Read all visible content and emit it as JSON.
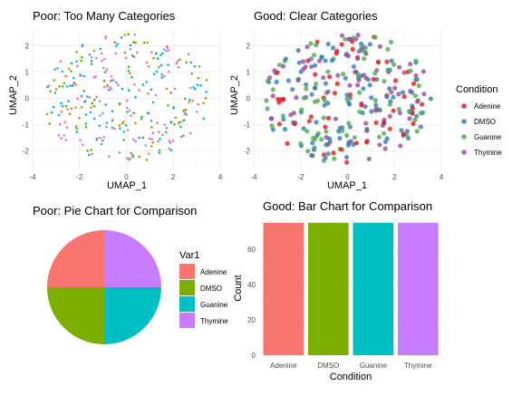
{
  "panels": {
    "tl_title": "Poor: Too Many Categories",
    "tr_title": "Good: Clear Categories",
    "bl_title": "Poor: Pie Chart for Comparison",
    "br_title": "Good: Bar Chart for Comparison"
  },
  "chart_data": [
    {
      "type": "scatter",
      "title": "Poor: Too Many Categories",
      "xlabel": "UMAP_1",
      "ylabel": "UMAP_2",
      "xlim": [
        -4,
        4
      ],
      "ylim": [
        -2.7,
        2.6
      ],
      "xticks": [
        "-4",
        "-2",
        "0",
        "2",
        "4"
      ],
      "yticks": [
        "-2",
        "-1",
        "0",
        "1",
        "2"
      ],
      "colors": [
        "#F8766D",
        "#C49A00",
        "#53B400",
        "#00C094",
        "#00B6EB",
        "#A58AFF",
        "#FB61D7",
        "#E76BF3",
        "#00BFC4",
        "#7CAE00"
      ],
      "n_points": 300,
      "seed": 7,
      "shape": "ellipse-cloud"
    },
    {
      "type": "scatter",
      "title": "Good: Clear Categories",
      "xlabel": "UMAP_1",
      "ylabel": "UMAP_2",
      "xlim": [
        -4,
        4
      ],
      "ylim": [
        -2.7,
        2.6
      ],
      "xticks": [
        "-4",
        "-2",
        "0",
        "2",
        "4"
      ],
      "yticks": [
        "-2",
        "-1",
        "0",
        "1",
        "2"
      ],
      "legend_title": "Condition",
      "legend_position": "right",
      "series": [
        {
          "name": "Adenine",
          "color": "#E41A1C"
        },
        {
          "name": "DMSO",
          "color": "#377EB8"
        },
        {
          "name": "Guanine",
          "color": "#4DAF4A"
        },
        {
          "name": "Thymine",
          "color": "#984EA3"
        }
      ],
      "n_points": 300,
      "seed": 11,
      "shape": "ellipse-cloud"
    },
    {
      "type": "pie",
      "title": "Poor: Pie Chart for Comparison",
      "legend_title": "Var1",
      "legend_position": "right",
      "slices": [
        {
          "name": "Adenine",
          "value": 75,
          "color": "#F8766D"
        },
        {
          "name": "DMSO",
          "value": 75,
          "color": "#7CAE00"
        },
        {
          "name": "Guanine",
          "value": 75,
          "color": "#00BFC4"
        },
        {
          "name": "Thymine",
          "value": 75,
          "color": "#C77CFF"
        }
      ]
    },
    {
      "type": "bar",
      "title": "Good: Bar Chart for Comparison",
      "xlabel": "Condition",
      "ylabel": "Count",
      "categories": [
        "Adenine",
        "DMSO",
        "Guanine",
        "Thymine"
      ],
      "values": [
        75,
        75,
        75,
        75
      ],
      "colors": [
        "#F8766D",
        "#7CAE00",
        "#00BFC4",
        "#C77CFF"
      ],
      "ylim": [
        0,
        78
      ],
      "yticks": [
        0,
        20,
        40,
        60
      ]
    }
  ]
}
